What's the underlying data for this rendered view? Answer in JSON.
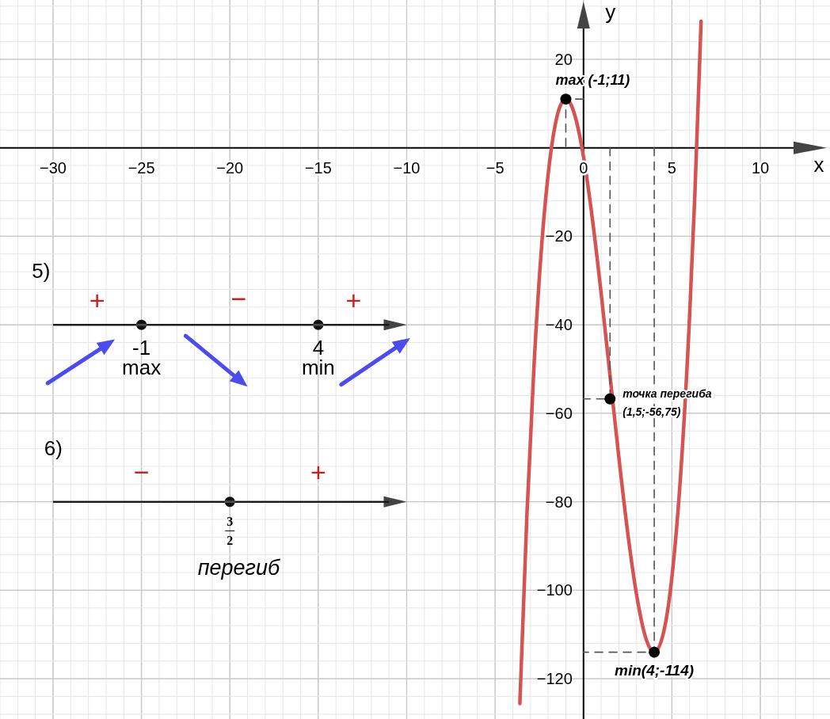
{
  "chart_data": {
    "type": "line",
    "xlabel": "x",
    "ylabel": "y",
    "xlim": [
      -33,
      13.94
    ],
    "ylim": [
      -129.1,
      33.4
    ],
    "xticks": [
      {
        "value": -30,
        "label": "−30"
      },
      {
        "value": -25,
        "label": "−25"
      },
      {
        "value": -20,
        "label": "−20"
      },
      {
        "value": -15,
        "label": "−15"
      },
      {
        "value": -10,
        "label": "−10"
      },
      {
        "value": -5,
        "label": "−5"
      },
      0,
      5,
      10
    ],
    "yticks": [
      20,
      {
        "value": -20,
        "label": "−20"
      },
      {
        "value": -40,
        "label": "−40"
      },
      {
        "value": -60,
        "label": "−60"
      },
      {
        "value": -80,
        "label": "−80"
      },
      {
        "value": -100,
        "label": "−100"
      },
      {
        "value": -120,
        "label": "−120"
      }
    ],
    "grid": true,
    "legend": false,
    "series": [
      {
        "color": "#d65353",
        "marker": "none",
        "x": [
          -3.6,
          -3.2,
          -2.8,
          -2.4,
          -2,
          -1.6,
          -1.3,
          -1,
          -0.7,
          -0.4,
          0,
          0.5,
          1,
          1.5,
          2,
          2.5,
          3,
          3.5,
          4,
          4.5,
          5,
          5.5,
          6,
          6.3,
          6.65
        ],
        "values": [
          -125.6,
          -82.9,
          -49.3,
          -23.9,
          -6,
          5.2,
          9.6,
          11,
          9.7,
          6,
          -2,
          -16,
          -33,
          -51.5,
          -70,
          -87,
          -101,
          -110.5,
          -114,
          -110,
          -97,
          -73.5,
          -38,
          -10.3,
          28.6
        ]
      },
      {
        "type": "line",
        "color": "#555555",
        "marker": "none",
        "line_style": "dashed",
        "x": [
          0,
          -1,
          -1
        ],
        "values": [
          11,
          11,
          0
        ]
      },
      {
        "type": "line",
        "color": "#555555",
        "marker": "none",
        "line_style": "dashed",
        "x": [
          1.5,
          1.5,
          0
        ],
        "values": [
          0,
          -56.75,
          -56.75
        ]
      },
      {
        "type": "line",
        "color": "#555555",
        "marker": "none",
        "line_style": "dashed",
        "x": [
          4,
          4,
          0
        ],
        "values": [
          0,
          -114,
          -114
        ]
      },
      {
        "type": "scatter",
        "color": "#000000",
        "marker": "circle",
        "x": [
          -1,
          1.5,
          4
        ],
        "values": [
          11,
          -56.75,
          -114
        ]
      }
    ],
    "annotations": [
      "5)",
      "+",
      "−",
      "+",
      "-1",
      "max",
      "4",
      "min",
      "6)",
      "−",
      "+",
      "3",
      "2",
      "перегиб",
      {
        "text": "max (-1;11)",
        "x": -1,
        "y": 11
      },
      {
        "text": "точка перегиба (1,5;-56,75)",
        "x": 1.5,
        "y": -56.75
      },
      {
        "text": "min(4;-114)",
        "x": 4,
        "y": -114
      }
    ]
  }
}
